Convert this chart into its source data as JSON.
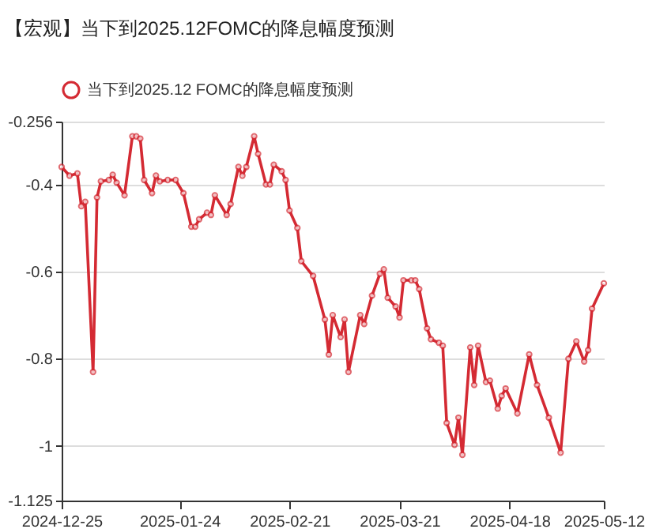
{
  "chart_data": {
    "type": "line",
    "title": "【宏观】当下到2025.12FOMC的降息幅度预测",
    "x": [
      "2024-12-25",
      "2024-12-27",
      "2024-12-29",
      "2024-12-30",
      "2024-12-31",
      "2025-01-02",
      "2025-01-03",
      "2025-01-04",
      "2025-01-06",
      "2025-01-07",
      "2025-01-08",
      "2025-01-10",
      "2025-01-12",
      "2025-01-13",
      "2025-01-14",
      "2025-01-15",
      "2025-01-17",
      "2025-01-18",
      "2025-01-19",
      "2025-01-21",
      "2025-01-23",
      "2025-01-25",
      "2025-01-27",
      "2025-01-28",
      "2025-01-29",
      "2025-01-31",
      "2025-02-01",
      "2025-02-02",
      "2025-02-05",
      "2025-02-06",
      "2025-02-08",
      "2025-02-09",
      "2025-02-10",
      "2025-02-12",
      "2025-02-13",
      "2025-02-15",
      "2025-02-16",
      "2025-02-17",
      "2025-02-19",
      "2025-02-20",
      "2025-02-21",
      "2025-02-23",
      "2025-02-24",
      "2025-02-27",
      "2025-03-02",
      "2025-03-03",
      "2025-03-04",
      "2025-03-06",
      "2025-03-07",
      "2025-03-08",
      "2025-03-11",
      "2025-03-12",
      "2025-03-14",
      "2025-03-16",
      "2025-03-17",
      "2025-03-18",
      "2025-03-20",
      "2025-03-21",
      "2025-03-22",
      "2025-03-24",
      "2025-03-25",
      "2025-03-26",
      "2025-03-28",
      "2025-03-29",
      "2025-03-31",
      "2025-04-01",
      "2025-04-02",
      "2025-04-04",
      "2025-04-05",
      "2025-04-06",
      "2025-04-08",
      "2025-04-09",
      "2025-04-10",
      "2025-04-12",
      "2025-04-13",
      "2025-04-15",
      "2025-04-16",
      "2025-04-17",
      "2025-04-20",
      "2025-04-23",
      "2025-04-25",
      "2025-04-28",
      "2025-05-01",
      "2025-05-03",
      "2025-05-05",
      "2025-05-07",
      "2025-05-08",
      "2025-05-09",
      "2025-05-12"
    ],
    "series": [
      {
        "name": "当下到2025.12 FOMC的降息幅度预测",
        "color": "#d42a33",
        "values": [
          -0.36,
          -0.38,
          -0.375,
          -0.45,
          -0.44,
          -0.83,
          -0.43,
          -0.393,
          -0.39,
          -0.378,
          -0.396,
          -0.425,
          -0.29,
          -0.29,
          -0.295,
          -0.39,
          -0.42,
          -0.38,
          -0.393,
          -0.39,
          -0.39,
          -0.42,
          -0.497,
          -0.497,
          -0.48,
          -0.465,
          -0.47,
          -0.425,
          -0.47,
          -0.445,
          -0.36,
          -0.38,
          -0.36,
          -0.29,
          -0.33,
          -0.4,
          -0.4,
          -0.355,
          -0.37,
          -0.39,
          -0.46,
          -0.5,
          -0.576,
          -0.61,
          -0.71,
          -0.79,
          -0.7,
          -0.75,
          -0.71,
          -0.83,
          -0.7,
          -0.72,
          -0.655,
          -0.605,
          -0.595,
          -0.66,
          -0.68,
          -0.705,
          -0.62,
          -0.62,
          -0.62,
          -0.64,
          -0.73,
          -0.755,
          -0.763,
          -0.77,
          -0.947,
          -0.997,
          -0.935,
          -1.02,
          -0.774,
          -0.86,
          -0.77,
          -0.853,
          -0.85,
          -0.914,
          -0.885,
          -0.868,
          -0.925,
          -0.79,
          -0.86,
          -0.935,
          -1.015,
          -0.8,
          -0.76,
          -0.806,
          -0.78,
          -0.685,
          -0.627
        ]
      }
    ],
    "xlim": [
      "2024-12-25",
      "2025-05-12"
    ],
    "xticks": [
      {
        "value": "2024-12-25",
        "label": "2024-12-25"
      },
      {
        "value": "2025-01-24",
        "label": "2025-01-24"
      },
      {
        "value": "2025-02-21",
        "label": "2025-02-21"
      },
      {
        "value": "2025-03-21",
        "label": "2025-03-21"
      },
      {
        "value": "2025-04-18",
        "label": "2025-04-18"
      },
      {
        "value": "2025-05-12",
        "label": "2025-05-12"
      }
    ],
    "ylim": [
      -1.125,
      -0.256
    ],
    "yticks": [
      -0.256,
      -0.4,
      -0.6,
      -0.8,
      -1,
      -1.125
    ],
    "grid": "y",
    "legend": "top",
    "marker": "circle",
    "line_style": "solid"
  }
}
